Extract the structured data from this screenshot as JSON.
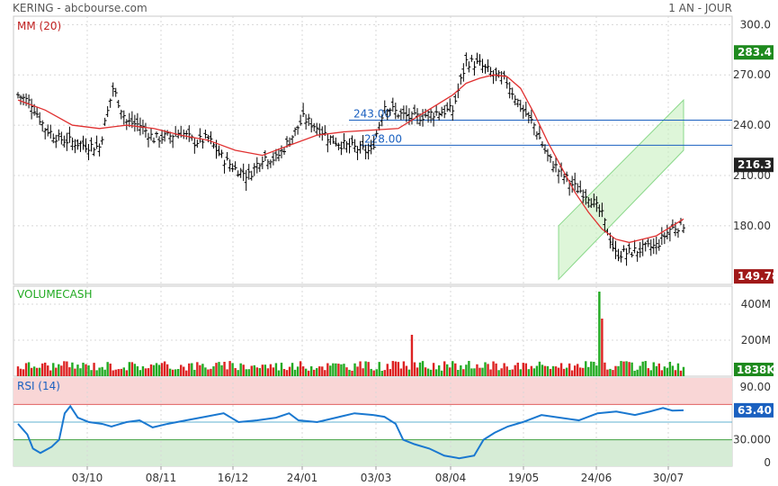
{
  "header": {
    "title": "KERING - abcbourse.com",
    "period": "1 AN - JOUR"
  },
  "colors": {
    "up": "#22aa22",
    "down": "#dd2222",
    "price_bar": "#000000",
    "ma": "#e03030",
    "rsi": "#1a78d0",
    "hline": "#1a60c0",
    "channel_fill": "#c8f0c0",
    "channel_line": "#8ad88a",
    "grid": "#d8d8d8",
    "last_badge_up": "#1e8a1e",
    "last_badge_dark": "#222222",
    "min_badge": "#a01818",
    "rsi_overbought_band": "#f9d6d6",
    "rsi_oversold_band": "#d6ecd6"
  },
  "chart_data": [
    {
      "type": "ohlc",
      "panel": "price",
      "title": "",
      "legend": "MM (20)",
      "y_ticks": [
        180,
        210,
        240,
        270,
        300
      ],
      "y_tick_labels": [
        "180.00",
        "210.00",
        "240.00",
        "270.00",
        "300.0"
      ],
      "ylim": [
        145,
        305
      ],
      "x_tick_labels": [
        "03/10",
        "08/11",
        "16/12",
        "24/01",
        "03/03",
        "08/04",
        "19/05",
        "24/06",
        "30/07"
      ],
      "badges": [
        {
          "label": "283.4",
          "value": 283.4,
          "style": "up"
        },
        {
          "label": "216.3",
          "value": 216.3,
          "style": "dark"
        },
        {
          "label": "149.78",
          "value": 149.78,
          "style": "min"
        }
      ],
      "horizontal_lines": [
        {
          "value": 243.0,
          "label": "243.00"
        },
        {
          "value": 228.0,
          "label": "228.00"
        }
      ],
      "channel": {
        "start_index": 199,
        "end_index": 245,
        "upper_start": 180,
        "upper_end": 255,
        "lower_start": 148,
        "lower_end": 225
      },
      "close_points": [
        [
          0,
          258
        ],
        [
          5,
          253
        ],
        [
          10,
          238
        ],
        [
          15,
          232
        ],
        [
          20,
          230
        ],
        [
          25,
          228
        ],
        [
          30,
          227
        ],
        [
          35,
          262
        ],
        [
          40,
          242
        ],
        [
          45,
          240
        ],
        [
          50,
          232
        ],
        [
          55,
          233
        ],
        [
          60,
          236
        ],
        [
          65,
          230
        ],
        [
          70,
          232
        ],
        [
          75,
          221
        ],
        [
          80,
          214
        ],
        [
          85,
          210
        ],
        [
          90,
          221
        ],
        [
          95,
          220
        ],
        [
          100,
          231
        ],
        [
          105,
          244
        ],
        [
          110,
          239
        ],
        [
          115,
          232
        ],
        [
          120,
          228
        ],
        [
          125,
          226
        ],
        [
          130,
          224
        ],
        [
          135,
          252
        ],
        [
          140,
          247
        ],
        [
          145,
          244
        ],
        [
          150,
          246
        ],
        [
          155,
          248
        ],
        [
          160,
          249
        ],
        [
          165,
          278
        ],
        [
          170,
          276
        ],
        [
          175,
          270
        ],
        [
          180,
          266
        ],
        [
          185,
          251
        ],
        [
          190,
          240
        ],
        [
          195,
          221
        ],
        [
          200,
          211
        ],
        [
          205,
          203
        ],
        [
          210,
          198
        ],
        [
          215,
          186
        ],
        [
          220,
          163
        ],
        [
          225,
          164
        ],
        [
          230,
          166
        ],
        [
          235,
          168
        ],
        [
          240,
          178
        ],
        [
          245,
          181
        ]
      ],
      "ma_points": [
        [
          0,
          255
        ],
        [
          10,
          249
        ],
        [
          20,
          240
        ],
        [
          30,
          238
        ],
        [
          40,
          240
        ],
        [
          50,
          238
        ],
        [
          60,
          234
        ],
        [
          70,
          231
        ],
        [
          80,
          225
        ],
        [
          90,
          222
        ],
        [
          100,
          228
        ],
        [
          110,
          234
        ],
        [
          120,
          236
        ],
        [
          130,
          237
        ],
        [
          140,
          238
        ],
        [
          150,
          248
        ],
        [
          160,
          258
        ],
        [
          165,
          265
        ],
        [
          170,
          268
        ],
        [
          175,
          270
        ],
        [
          180,
          269
        ],
        [
          185,
          262
        ],
        [
          190,
          247
        ],
        [
          195,
          230
        ],
        [
          200,
          215
        ],
        [
          205,
          200
        ],
        [
          210,
          188
        ],
        [
          215,
          178
        ],
        [
          220,
          172
        ],
        [
          225,
          170
        ],
        [
          230,
          172
        ],
        [
          235,
          174
        ],
        [
          240,
          179
        ],
        [
          245,
          184
        ]
      ],
      "volume": {
        "legend": "VOLUMECASH",
        "y_ticks": [
          200,
          400
        ],
        "y_tick_labels": [
          "200M",
          "400M"
        ],
        "ylim": [
          0,
          470
        ],
        "last_label": "1838K",
        "spikes": [
          {
            "index": 145,
            "value": 230
          },
          {
            "index": 214,
            "value": 470
          },
          {
            "index": 215,
            "value": 320
          }
        ]
      },
      "rsi": {
        "legend": "RSI (14)",
        "y_ticks": [
          0,
          30,
          90
        ],
        "y_tick_labels": [
          "0",
          "30.000",
          "90.00"
        ],
        "ylim": [
          0,
          100
        ],
        "overbought": 70,
        "oversold": 30,
        "last_label": "63.40",
        "points": [
          [
            0,
            48
          ],
          [
            5,
            36
          ],
          [
            8,
            20
          ],
          [
            12,
            15
          ],
          [
            18,
            22
          ],
          [
            22,
            30
          ],
          [
            25,
            60
          ],
          [
            28,
            68
          ],
          [
            32,
            55
          ],
          [
            38,
            50
          ],
          [
            45,
            48
          ],
          [
            50,
            45
          ],
          [
            58,
            50
          ],
          [
            65,
            52
          ],
          [
            72,
            44
          ],
          [
            80,
            48
          ],
          [
            90,
            52
          ],
          [
            100,
            56
          ],
          [
            110,
            60
          ],
          [
            118,
            50
          ],
          [
            128,
            52
          ],
          [
            138,
            55
          ],
          [
            145,
            60
          ],
          [
            150,
            52
          ],
          [
            160,
            50
          ],
          [
            170,
            55
          ],
          [
            180,
            60
          ],
          [
            190,
            58
          ],
          [
            196,
            56
          ],
          [
            202,
            48
          ],
          [
            206,
            30
          ],
          [
            212,
            25
          ],
          [
            220,
            20
          ],
          [
            228,
            12
          ],
          [
            236,
            9
          ],
          [
            244,
            12
          ],
          [
            249,
            30
          ],
          [
            255,
            38
          ],
          [
            262,
            45
          ],
          [
            270,
            50
          ],
          [
            280,
            58
          ],
          [
            290,
            55
          ],
          [
            300,
            52
          ],
          [
            310,
            60
          ],
          [
            320,
            62
          ],
          [
            330,
            58
          ],
          [
            338,
            62
          ],
          [
            345,
            66
          ],
          [
            350,
            63
          ],
          [
            356,
            63.4
          ]
        ]
      }
    }
  ]
}
